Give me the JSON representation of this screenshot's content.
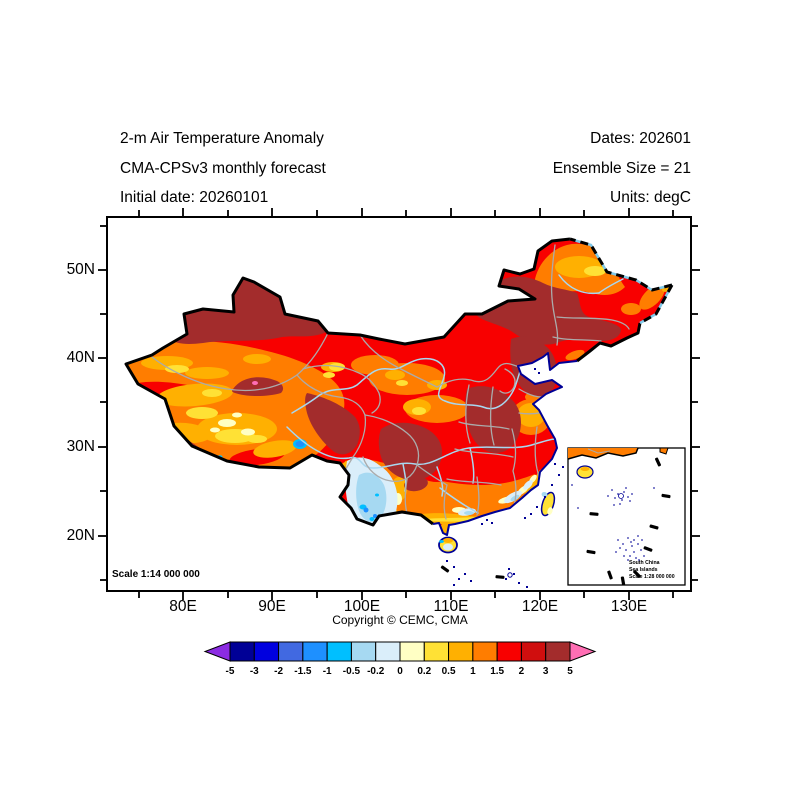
{
  "header": {
    "title_lines": [
      "2-m Air Temperature Anomaly",
      "CMA-CPSv3 monthly forecast",
      "Initial date: 20260101"
    ],
    "meta_lines": [
      "Dates: 202601",
      "Ensemble Size = 21",
      "Units: degC"
    ]
  },
  "axes": {
    "lat_labels": [
      "50N",
      "40N",
      "30N",
      "20N"
    ],
    "lon_labels": [
      "80E",
      "90E",
      "100E",
      "110E",
      "120E",
      "130E"
    ]
  },
  "map": {
    "scale_label": "Scale 1:14 000 000",
    "inset_lines": [
      "South China",
      "Sea Islands",
      "Scale 1:28 000 000"
    ]
  },
  "footer": {
    "copyright": "Copyright © CEMC, CMA"
  },
  "colorbar": {
    "units": "degC",
    "levels": [
      "-5",
      "-3",
      "-2",
      "-1.5",
      "-1",
      "-0.5",
      "-0.2",
      "0",
      "0.2",
      "0.5",
      "1",
      "1.5",
      "2",
      "3",
      "5"
    ],
    "box_colors": [
      "#000096",
      "#0000DF",
      "#4169E1",
      "#1E90FF",
      "#00BFFF",
      "#A6D9F2",
      "#DAEEFA",
      "#FFFFC4",
      "#FFE135",
      "#FFB001",
      "#FF7D00",
      "#F80000",
      "#D00E0E",
      "#A32C2C"
    ],
    "under_color": "#8B2BE2",
    "over_color": "#FF6EB4"
  }
}
